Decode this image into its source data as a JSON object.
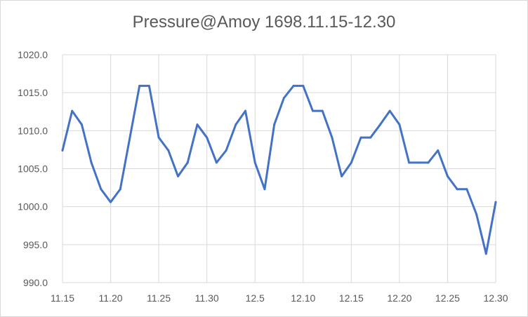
{
  "chart_data": {
    "type": "line",
    "title": "Pressure@Amoy 1698.11.15-12.30",
    "xlabel": "",
    "ylabel": "",
    "ylim": [
      990,
      1020
    ],
    "yticks": [
      990,
      995,
      1000,
      1005,
      1010,
      1015,
      1020
    ],
    "ytick_labels": [
      "990.0",
      "995.0",
      "1000.0",
      "1005.0",
      "1010.0",
      "1015.0",
      "1020.0"
    ],
    "x_tick_labels": [
      "11.15",
      "11.20",
      "11.25",
      "11.30",
      "12.5",
      "12.10",
      "12.15",
      "12.20",
      "12.25",
      "12.30"
    ],
    "x_tick_every": 5,
    "grid": true,
    "line_color": "#4472c4",
    "series": [
      {
        "values": [
          1007.4,
          1012.6,
          1010.8,
          1005.8,
          1002.3,
          1000.6,
          1002.3,
          1009.1,
          1015.9,
          1015.9,
          1009.1,
          1007.4,
          1004.0,
          1005.8,
          1010.8,
          1009.1,
          1005.8,
          1007.4,
          1010.8,
          1012.6,
          1005.8,
          1002.3,
          1010.8,
          1014.3,
          1015.9,
          1015.9,
          1012.6,
          1012.6,
          1009.1,
          1004.0,
          1005.8,
          1009.1,
          1009.1,
          1010.8,
          1012.6,
          1010.8,
          1005.8,
          1005.8,
          1005.8,
          1007.4,
          1004.0,
          1002.3,
          1002.3,
          999.0,
          993.8,
          1000.6
        ]
      }
    ]
  }
}
